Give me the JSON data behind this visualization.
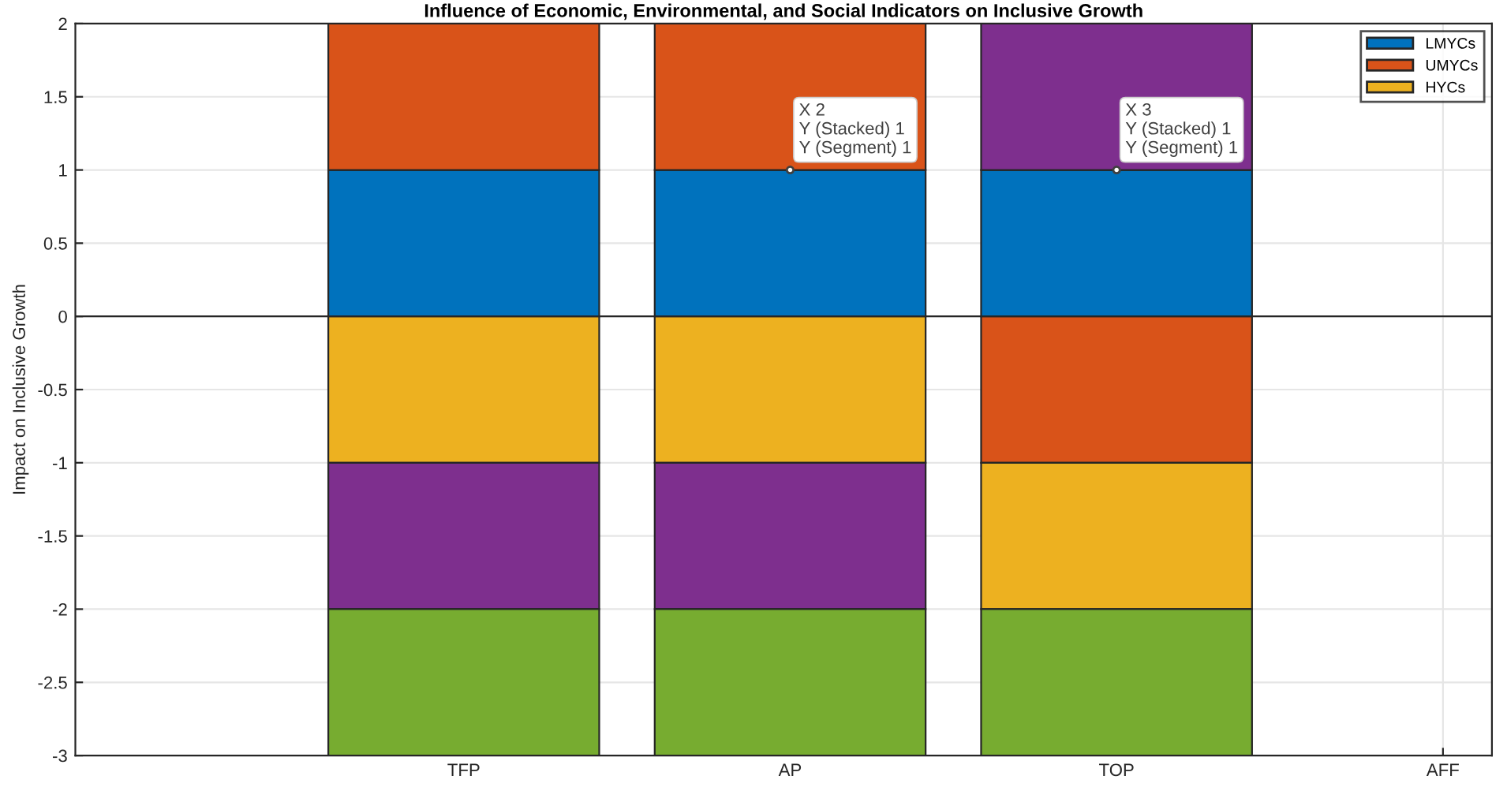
{
  "chart_data": {
    "type": "bar",
    "title": "Influence of Economic, Environmental, and Social Indicators on Inclusive Growth",
    "ylabel": "Impact on Inclusive Growth",
    "categories": [
      "TFP",
      "AP",
      "TOP",
      "AFF"
    ],
    "stacked": true,
    "series": [
      {
        "name": "LMYCs",
        "color": "#0072bd",
        "values": [
          1,
          1,
          1,
          null
        ]
      },
      {
        "name": "UMYCs",
        "color": "#d95319",
        "values": [
          1,
          1,
          -1,
          null
        ]
      },
      {
        "name": "HYCs",
        "color": "#edb120",
        "values": [
          -1,
          -1,
          -1,
          null
        ]
      },
      {
        "color": "#7e2f8e",
        "values": [
          -1,
          -1,
          1,
          null
        ]
      },
      {
        "color": "#77ac30",
        "values": [
          -1,
          -1,
          -1,
          null
        ]
      }
    ],
    "ylim": [
      -3,
      2
    ],
    "yticks": [
      -3,
      -2.5,
      -2,
      -1.5,
      -1,
      -0.5,
      0,
      0.5,
      1,
      1.5,
      2
    ],
    "grid": true,
    "legend": "top right",
    "ref_lines": [
      {
        "axis": "y",
        "value": 0,
        "color": "#262626"
      }
    ],
    "annotations": [
      {
        "text": "X 2\nY (Stacked) 1\nY (Segment) 1",
        "x": "AP",
        "y": 1
      },
      {
        "text": "X 3\nY (Stacked) 1\nY (Segment) 1",
        "x": "TOP",
        "y": 1
      }
    ]
  }
}
